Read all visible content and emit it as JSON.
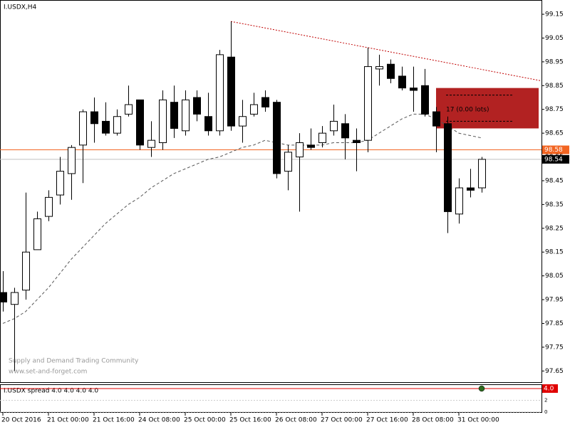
{
  "chart_data": [
    {
      "type": "candlestick",
      "title": "I.USDX,H4",
      "categories": [
        "20 Oct 2016",
        null,
        null,
        null,
        "21 Oct 00:00",
        null,
        null,
        null,
        "21 Oct 16:00",
        null,
        null,
        null,
        "24 Oct 08:00",
        null,
        null,
        null,
        "25 Oct 00:00",
        null,
        null,
        null,
        "25 Oct 16:00",
        null,
        null,
        null,
        "26 Oct 08:00",
        null,
        null,
        null,
        "27 Oct 00:00",
        null,
        null,
        null,
        "27 Oct 16:00",
        null,
        null,
        null,
        "28 Oct 08:00",
        null,
        null,
        null,
        "31 Oct 00:00",
        null,
        null
      ],
      "open": [
        97.98,
        97.93,
        97.99,
        98.16,
        98.3,
        98.39,
        98.48,
        98.6,
        98.74,
        98.7,
        98.65,
        98.73,
        98.79,
        98.59,
        98.61,
        98.78,
        98.66,
        98.8,
        98.72,
        98.66,
        98.97,
        98.68,
        98.73,
        98.8,
        98.78,
        98.49,
        98.55,
        98.6,
        98.61,
        98.66,
        98.69,
        98.62,
        98.62,
        98.92,
        98.94,
        98.89,
        98.84,
        98.85,
        98.74,
        98.69,
        98.31,
        98.42,
        98.42
      ],
      "high": [
        98.07,
        98.0,
        98.4,
        98.32,
        98.41,
        98.55,
        98.6,
        98.75,
        98.8,
        98.78,
        98.75,
        98.85,
        98.79,
        98.7,
        98.83,
        98.85,
        98.83,
        98.83,
        98.82,
        99.0,
        99.12,
        98.79,
        98.82,
        98.83,
        98.79,
        98.6,
        98.65,
        98.67,
        98.68,
        98.77,
        98.73,
        98.67,
        99.01,
        98.98,
        98.96,
        98.93,
        98.93,
        98.92,
        98.76,
        98.72,
        98.46,
        98.5,
        98.55
      ],
      "low": [
        97.9,
        97.65,
        97.95,
        98.16,
        98.28,
        98.35,
        98.37,
        98.44,
        98.61,
        98.64,
        98.64,
        98.72,
        98.58,
        98.55,
        98.58,
        98.63,
        98.64,
        98.7,
        98.64,
        98.64,
        98.66,
        98.61,
        98.72,
        98.74,
        98.46,
        98.41,
        98.32,
        98.58,
        98.59,
        98.64,
        98.54,
        98.49,
        98.57,
        98.85,
        98.86,
        98.83,
        98.74,
        98.72,
        98.57,
        98.23,
        98.27,
        98.38,
        98.4
      ],
      "close": [
        97.94,
        97.98,
        98.15,
        98.29,
        98.38,
        98.49,
        98.59,
        98.74,
        98.69,
        98.65,
        98.72,
        98.77,
        98.6,
        98.62,
        98.79,
        98.67,
        98.79,
        98.73,
        98.66,
        98.98,
        98.68,
        98.72,
        98.77,
        98.76,
        98.48,
        98.57,
        98.61,
        98.59,
        98.65,
        98.7,
        98.63,
        98.61,
        98.93,
        98.93,
        98.88,
        98.84,
        98.83,
        98.73,
        98.68,
        98.32,
        98.42,
        98.41,
        98.54
      ],
      "up_color": "#ffffff",
      "down_color": "#000000",
      "moving_average": {
        "color": "#555555",
        "values": [
          97.85,
          97.87,
          97.9,
          97.95,
          98.0,
          98.06,
          98.12,
          98.17,
          98.22,
          98.27,
          98.31,
          98.35,
          98.38,
          98.42,
          98.45,
          98.48,
          98.5,
          98.52,
          98.54,
          98.55,
          98.57,
          98.59,
          98.6,
          98.62,
          98.61,
          98.6,
          98.6,
          98.6,
          98.6,
          98.61,
          98.61,
          98.61,
          98.62,
          98.65,
          98.68,
          98.71,
          98.73,
          98.73,
          98.71,
          98.68,
          98.65,
          98.64,
          98.63
        ]
      },
      "trendline": {
        "color": "#c00000",
        "x": [
          20,
          47.25
        ],
        "values": [
          99.12,
          98.87
        ]
      },
      "hlines": [
        {
          "value": 98.58,
          "color": "#f26522"
        },
        {
          "value": 98.54,
          "color": "#c0c0c0"
        }
      ],
      "zone": {
        "x": [
          38,
          47
        ],
        "top": 98.84,
        "bottom": 98.67,
        "lines": [
          98.81,
          98.7
        ],
        "label": "17 (0.00 lots)",
        "color": "#b22222"
      },
      "watermark": [
        "Supply and Demand Trading Community",
        "www.set-and-forget.com"
      ],
      "ylim": [
        97.6,
        99.21
      ],
      "yticks": [
        99.15,
        99.05,
        98.95,
        98.85,
        98.75,
        98.65,
        98.55,
        98.45,
        98.35,
        98.25,
        98.15,
        98.05,
        97.95,
        97.85,
        97.75,
        97.65
      ]
    },
    {
      "type": "level",
      "title": "I.USDX spread 4.0 4.0 4.0 4.0",
      "level": {
        "value": 4,
        "label": "4.0",
        "color": "#e00000"
      },
      "marker": {
        "index": 42,
        "value": 4,
        "color": "#2e6b1f"
      },
      "ylim": [
        0,
        4.6
      ],
      "yticks": [
        2,
        0
      ]
    }
  ]
}
